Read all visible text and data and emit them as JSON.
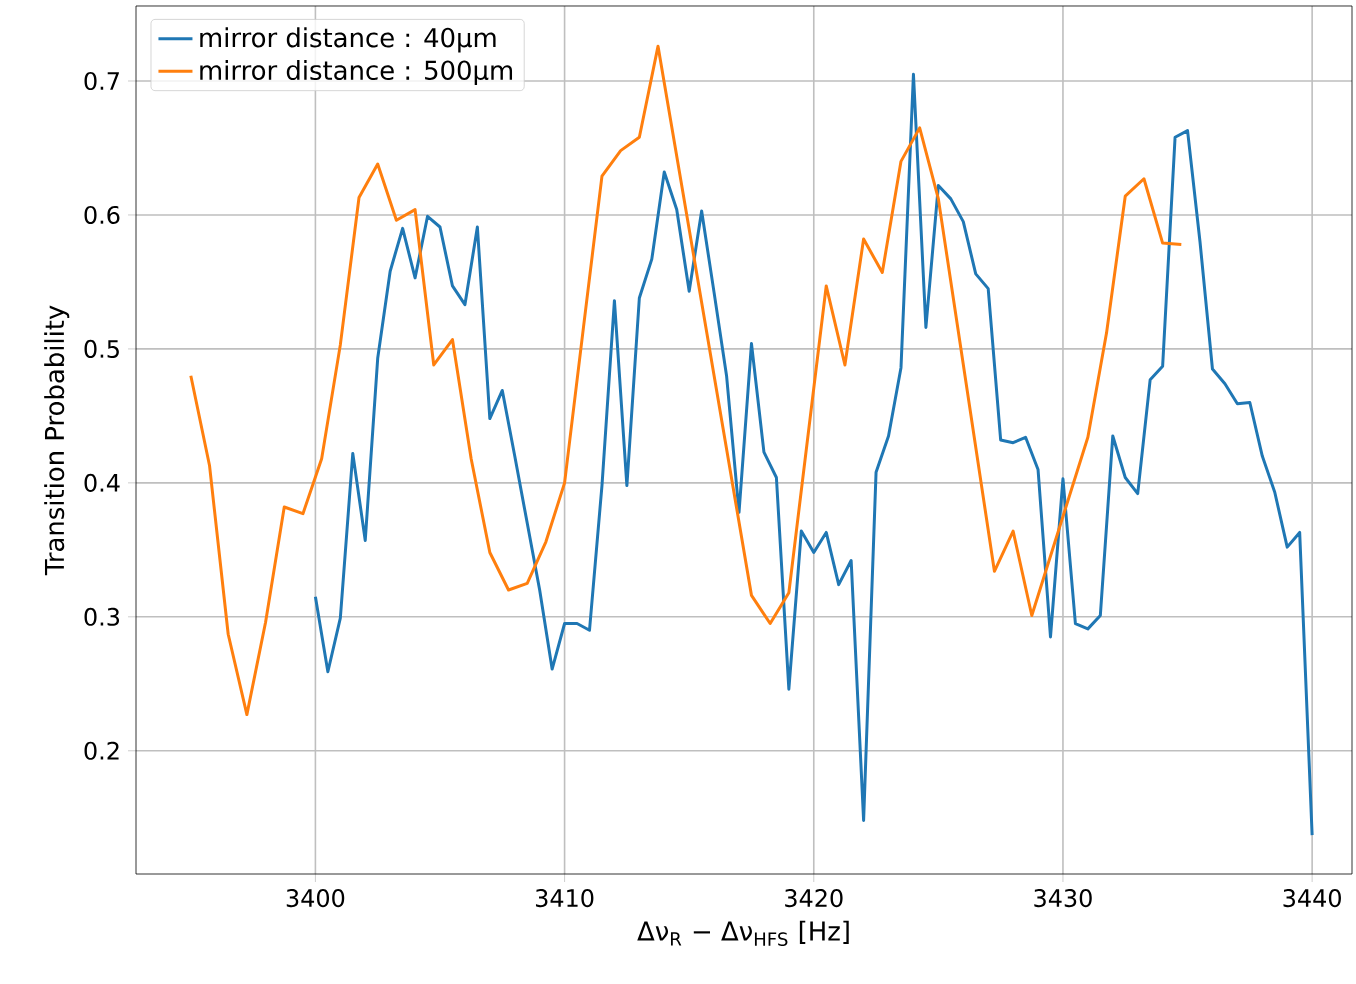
{
  "chart_data": {
    "type": "line",
    "xlabel": "Δν$_{R}$ − Δν$_{HFS}$ [Hz]",
    "ylabel": "Transition Probability",
    "xlim": [
      3392.8,
      3441.6
    ],
    "ylim": [
      0.108,
      0.756
    ],
    "xticks": [
      3400,
      3410,
      3420,
      3430,
      3440
    ],
    "yticks": [
      0.2,
      0.3,
      0.4,
      0.5,
      0.6,
      0.7
    ],
    "grid": true,
    "legend": "top left",
    "series": [
      {
        "name": "mirror distance : 40µm",
        "color": "#1f77b4",
        "x": [
          3400,
          3400.5,
          3401,
          3401.5,
          3402,
          3402.5,
          3403,
          3403.5,
          3404,
          3404.5,
          3405,
          3405.5,
          3406,
          3406.5,
          3407,
          3407.5,
          3408,
          3408.5,
          3409,
          3409.5,
          3410,
          3410.5,
          3411,
          3411.5,
          3412,
          3412.5,
          3413,
          3413.5,
          3414,
          3414.5,
          3415,
          3415.5,
          3416,
          3416.5,
          3417,
          3417.5,
          3418,
          3418.5,
          3419,
          3419.5,
          3420,
          3420.5,
          3421,
          3421.5,
          3422,
          3422.5,
          3423,
          3423.5,
          3424,
          3424.5,
          3425,
          3425.5,
          3426,
          3426.5,
          3427,
          3427.5,
          3428,
          3428.5,
          3429,
          3429.5,
          3430,
          3430.5,
          3431,
          3431.5,
          3432,
          3432.5,
          3433,
          3433.5,
          3434,
          3434.5,
          3435,
          3435.5,
          3436,
          3436.5,
          3437,
          3437.5,
          3438,
          3438.5,
          3439,
          3439.5,
          3440
        ],
        "values": [
          0.315,
          0.259,
          0.299,
          0.422,
          0.357,
          0.493,
          0.558,
          0.59,
          0.553,
          0.599,
          0.591,
          0.547,
          0.533,
          0.591,
          0.448,
          0.469,
          0.42,
          0.37,
          0.32,
          0.261,
          0.295,
          0.295,
          0.29,
          0.398,
          0.536,
          0.398,
          0.538,
          0.567,
          0.632,
          0.604,
          0.543,
          0.603,
          0.542,
          0.48,
          0.378,
          0.504,
          0.423,
          0.404,
          0.246,
          0.364,
          0.348,
          0.363,
          0.324,
          0.342,
          0.148,
          0.408,
          0.435,
          0.486,
          0.705,
          0.516,
          0.622,
          0.612,
          0.595,
          0.556,
          0.545,
          0.432,
          0.43,
          0.434,
          0.41,
          0.285,
          0.403,
          0.295,
          0.291,
          0.301,
          0.435,
          0.404,
          0.392,
          0.477,
          0.487,
          0.658,
          0.663,
          0.58,
          0.485,
          0.474,
          0.459,
          0.46,
          0.42,
          0.393,
          0.352,
          0.363,
          0.137
        ]
      },
      {
        "name": "mirror distance : 500µm",
        "color": "#ff7f0e",
        "x": [
          3395,
          3395.75,
          3396.5,
          3397.25,
          3398,
          3398.75,
          3399.5,
          3400.25,
          3401,
          3401.75,
          3402.5,
          3403.25,
          3404,
          3404.75,
          3405.5,
          3406.25,
          3407,
          3407.75,
          3408.5,
          3409.25,
          3410,
          3410.75,
          3411.5,
          3412.25,
          3413,
          3413.75,
          3417.5,
          3418.25,
          3419,
          3420.5,
          3421.25,
          3422,
          3422.75,
          3423.5,
          3424.25,
          3425,
          3427.25,
          3428,
          3428.75,
          3431,
          3431.75,
          3432.5,
          3433.25,
          3434,
          3434.75
        ],
        "values": [
          0.48,
          0.413,
          0.287,
          0.227,
          0.296,
          0.382,
          0.377,
          0.418,
          0.503,
          0.613,
          0.638,
          0.596,
          0.604,
          0.488,
          0.507,
          0.418,
          0.348,
          0.32,
          0.325,
          0.356,
          0.4,
          0.515,
          0.629,
          0.648,
          0.658,
          0.726,
          0.316,
          0.295,
          0.318,
          0.547,
          0.488,
          0.582,
          0.557,
          0.64,
          0.665,
          0.612,
          0.334,
          0.364,
          0.301,
          0.434,
          0.512,
          0.614,
          0.627,
          0.579,
          0.578
        ]
      }
    ]
  }
}
